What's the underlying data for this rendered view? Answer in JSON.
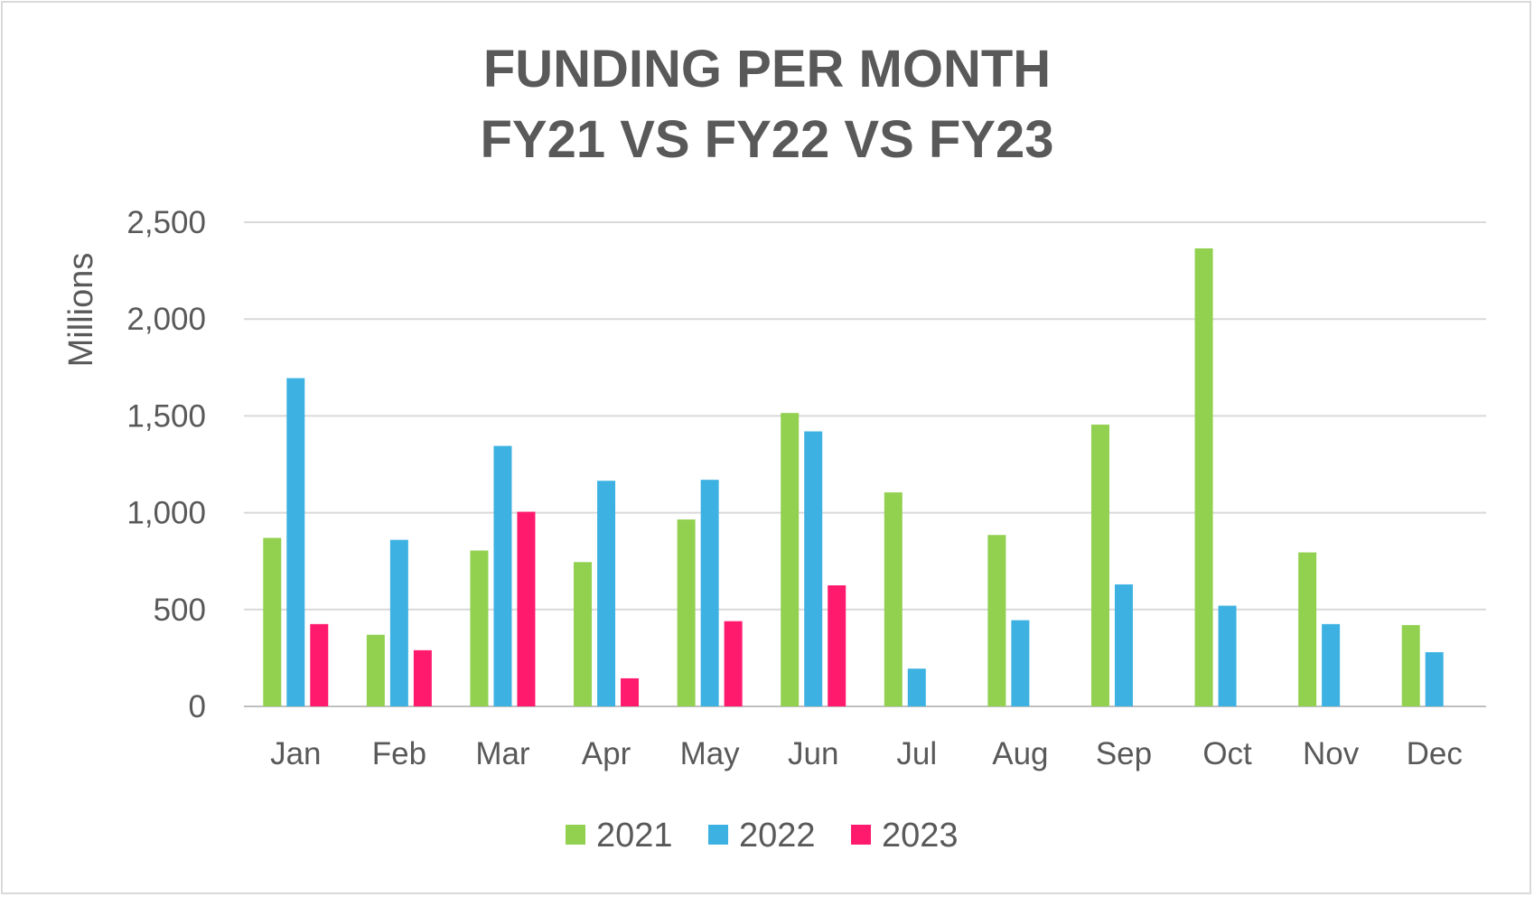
{
  "chart_data": {
    "type": "bar",
    "title_lines": [
      "FUNDING PER MONTH",
      "FY21 VS FY22 VS FY23"
    ],
    "xlabel": "",
    "ylabel": "Millions",
    "ylim": [
      0,
      2500
    ],
    "yticks": [
      0,
      500,
      1000,
      1500,
      2000,
      2500
    ],
    "ytick_labels": [
      "0",
      "500",
      "1,000",
      "1,500",
      "2,000",
      "2,500"
    ],
    "categories": [
      "Jan",
      "Feb",
      "Mar",
      "Apr",
      "May",
      "Jun",
      "Jul",
      "Aug",
      "Sep",
      "Oct",
      "Nov",
      "Dec"
    ],
    "grid": true,
    "legend_position": "bottom",
    "series": [
      {
        "name": "2021",
        "color": "#92d050",
        "values": [
          870,
          370,
          805,
          745,
          965,
          1515,
          1105,
          885,
          1455,
          2365,
          795,
          420
        ]
      },
      {
        "name": "2022",
        "color": "#3db2e2",
        "values": [
          1695,
          860,
          1345,
          1165,
          1170,
          1420,
          195,
          445,
          630,
          520,
          425,
          280
        ]
      },
      {
        "name": "2023",
        "color": "#ff1a6e",
        "values": [
          425,
          290,
          1005,
          145,
          440,
          625,
          null,
          null,
          null,
          null,
          null,
          null
        ]
      }
    ]
  }
}
